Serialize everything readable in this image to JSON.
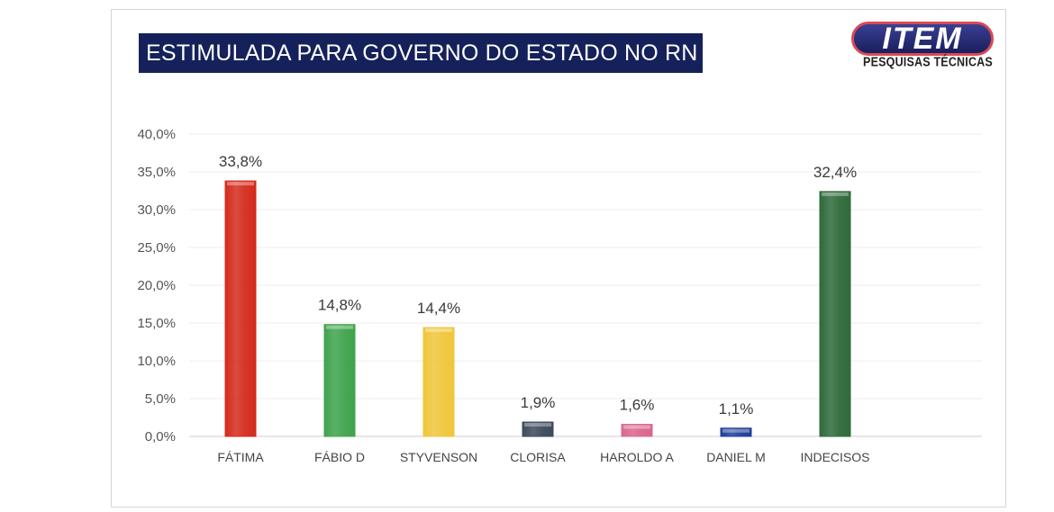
{
  "logo": {
    "main": "ITEM",
    "sub": "PESQUISAS TÉCNICAS"
  },
  "chart_data": {
    "type": "bar",
    "title": "ESTIMULADA PARA GOVERNO DO ESTADO NO RN",
    "categories": [
      "FÁTIMA",
      "FÁBIO D",
      "STYVENSON",
      "CLORISA",
      "HAROLDO A",
      "DANIEL M",
      "INDECISOS"
    ],
    "values": [
      33.8,
      14.8,
      14.4,
      1.9,
      1.6,
      1.1,
      32.4
    ],
    "data_labels": [
      "33,8%",
      "14,8%",
      "14,4%",
      "1,9%",
      "1,6%",
      "1,1%",
      "32,4%"
    ],
    "colors": [
      "#d42b1c",
      "#3fa34d",
      "#f0c63a",
      "#3d4a5c",
      "#d9668e",
      "#1f3f9a",
      "#2f6a3a"
    ],
    "yticks": [
      "0,0%",
      "5,0%",
      "10,0%",
      "15,0%",
      "20,0%",
      "25,0%",
      "30,0%",
      "35,0%",
      "40,0%"
    ],
    "ylim": [
      0,
      40
    ],
    "grid": true,
    "legend": "none"
  }
}
